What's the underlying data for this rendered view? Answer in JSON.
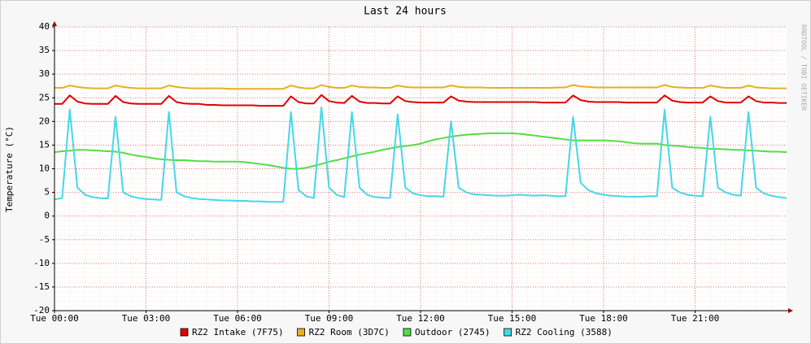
{
  "chart_data": {
    "type": "line",
    "title": "Last 24 hours",
    "y_label": "Temperature (°C)",
    "watermark": "RRDTOOL / TOBI OETIKER",
    "xlim": [
      0,
      24
    ],
    "xticks": [
      {
        "value": 0,
        "label": "Tue 00:00"
      },
      {
        "value": 3,
        "label": "Tue 03:00"
      },
      {
        "value": 6,
        "label": "Tue 06:00"
      },
      {
        "value": 9,
        "label": "Tue 09:00"
      },
      {
        "value": 12,
        "label": "Tue 12:00"
      },
      {
        "value": 15,
        "label": "Tue 15:00"
      },
      {
        "value": 18,
        "label": "Tue 18:00"
      },
      {
        "value": 21,
        "label": "Tue 21:00"
      }
    ],
    "ylim": [
      -20,
      40
    ],
    "yticks": [
      -20,
      -15,
      -10,
      -5,
      0,
      5,
      10,
      15,
      20,
      25,
      30,
      35,
      40
    ],
    "grid": true,
    "x": [
      0,
      0.25,
      0.5,
      0.75,
      1,
      1.25,
      1.5,
      1.75,
      2,
      2.25,
      2.5,
      2.75,
      3,
      3.25,
      3.5,
      3.75,
      4,
      4.25,
      4.5,
      4.75,
      5,
      5.25,
      5.5,
      5.75,
      6,
      6.25,
      6.5,
      6.75,
      7,
      7.25,
      7.5,
      7.75,
      8,
      8.25,
      8.5,
      8.75,
      9,
      9.25,
      9.5,
      9.75,
      10,
      10.25,
      10.5,
      10.75,
      11,
      11.25,
      11.5,
      11.75,
      12,
      12.25,
      12.5,
      12.75,
      13,
      13.25,
      13.5,
      13.75,
      14,
      14.25,
      14.5,
      14.75,
      15,
      15.25,
      15.5,
      15.75,
      16,
      16.25,
      16.5,
      16.75,
      17,
      17.25,
      17.5,
      17.75,
      18,
      18.25,
      18.5,
      18.75,
      19,
      19.25,
      19.5,
      19.75,
      20,
      20.25,
      20.5,
      20.75,
      21,
      21.25,
      21.5,
      21.75,
      22,
      22.25,
      22.5,
      22.75,
      23,
      23.25,
      23.5,
      23.75,
      24
    ],
    "series": [
      {
        "name": "RZ2 Intake (7F75)",
        "color": "#e00000",
        "values": [
          23.7,
          23.7,
          25.5,
          24.2,
          23.8,
          23.7,
          23.7,
          23.7,
          25.4,
          24.1,
          23.8,
          23.7,
          23.7,
          23.7,
          23.7,
          25.4,
          24.1,
          23.8,
          23.7,
          23.7,
          23.5,
          23.5,
          23.4,
          23.4,
          23.4,
          23.4,
          23.4,
          23.3,
          23.3,
          23.3,
          23.3,
          25.3,
          24.1,
          23.8,
          23.8,
          25.6,
          24.3,
          24,
          23.9,
          25.4,
          24.2,
          23.9,
          23.9,
          23.8,
          23.8,
          25.3,
          24.3,
          24.1,
          24,
          24,
          24,
          24,
          25.3,
          24.4,
          24.2,
          24.1,
          24.1,
          24.1,
          24.1,
          24.1,
          24.1,
          24.1,
          24.1,
          24.1,
          24,
          24,
          24,
          24,
          25.5,
          24.5,
          24.2,
          24.1,
          24.1,
          24.1,
          24.1,
          24,
          24,
          24,
          24,
          24,
          25.5,
          24.4,
          24.1,
          24,
          24,
          24,
          25.3,
          24.3,
          24,
          24,
          24,
          25.3,
          24.3,
          24,
          24,
          23.9,
          23.9
        ]
      },
      {
        "name": "RZ2 Room (3D7C)",
        "color": "#e6b020",
        "values": [
          27.1,
          27.1,
          27.6,
          27.3,
          27.1,
          27,
          27,
          27,
          27.6,
          27.3,
          27.1,
          27,
          27,
          27,
          27,
          27.6,
          27.3,
          27.1,
          27,
          27,
          27,
          27,
          27,
          26.9,
          26.9,
          26.9,
          26.9,
          26.9,
          26.9,
          26.9,
          26.9,
          27.6,
          27.2,
          27,
          27,
          27.7,
          27.3,
          27.1,
          27.1,
          27.6,
          27.3,
          27.2,
          27.2,
          27.1,
          27.1,
          27.6,
          27.3,
          27.2,
          27.2,
          27.2,
          27.2,
          27.2,
          27.6,
          27.3,
          27.2,
          27.2,
          27.2,
          27.1,
          27.1,
          27.1,
          27.1,
          27.1,
          27.1,
          27.1,
          27.1,
          27.1,
          27.2,
          27.2,
          27.7,
          27.4,
          27.3,
          27.2,
          27.2,
          27.2,
          27.2,
          27.2,
          27.2,
          27.2,
          27.2,
          27.2,
          27.7,
          27.3,
          27.2,
          27.1,
          27.1,
          27.1,
          27.6,
          27.3,
          27.1,
          27.1,
          27.1,
          27.6,
          27.2,
          27.1,
          27,
          27,
          27
        ]
      },
      {
        "name": "Outdoor (2745)",
        "color": "#55dd44",
        "values": [
          13.5,
          13.7,
          13.8,
          14,
          14,
          13.9,
          13.8,
          13.7,
          13.6,
          13.4,
          13,
          12.7,
          12.5,
          12.2,
          12,
          11.9,
          11.8,
          11.8,
          11.7,
          11.6,
          11.6,
          11.5,
          11.5,
          11.5,
          11.5,
          11.4,
          11.2,
          11,
          10.8,
          10.5,
          10.2,
          10,
          10,
          10.2,
          10.6,
          11,
          11.5,
          11.8,
          12.2,
          12.6,
          13,
          13.3,
          13.6,
          14,
          14.3,
          14.6,
          14.8,
          15,
          15.3,
          15.8,
          16.2,
          16.5,
          16.8,
          17,
          17.2,
          17.3,
          17.4,
          17.5,
          17.5,
          17.5,
          17.5,
          17.4,
          17.2,
          17,
          16.8,
          16.6,
          16.4,
          16.2,
          16,
          16,
          16,
          16,
          16,
          15.9,
          15.8,
          15.6,
          15.4,
          15.3,
          15.3,
          15.3,
          15,
          14.9,
          14.8,
          14.6,
          14.5,
          14.4,
          14.2,
          14.2,
          14.1,
          14,
          14,
          13.9,
          13.8,
          13.7,
          13.6,
          13.6,
          13.5
        ]
      },
      {
        "name": "RZ2 Cooling (3588)",
        "color": "#44d8e8",
        "values": [
          3.5,
          3.8,
          22.5,
          6,
          4.5,
          4,
          3.8,
          3.7,
          21,
          5,
          4.2,
          3.8,
          3.6,
          3.5,
          3.4,
          22,
          5,
          4.2,
          3.8,
          3.6,
          3.5,
          3.4,
          3.3,
          3.3,
          3.2,
          3.2,
          3.1,
          3.1,
          3,
          3,
          3,
          22,
          5.5,
          4.2,
          3.8,
          23,
          6,
          4.5,
          4,
          22,
          6,
          4.5,
          4,
          3.9,
          3.8,
          21.5,
          6,
          4.8,
          4.4,
          4.2,
          4.2,
          4.1,
          20,
          6,
          5,
          4.6,
          4.5,
          4.4,
          4.3,
          4.3,
          4.4,
          4.5,
          4.4,
          4.3,
          4.4,
          4.3,
          4.2,
          4.2,
          21,
          7,
          5.5,
          4.8,
          4.5,
          4.3,
          4.2,
          4.1,
          4.1,
          4.1,
          4.2,
          4.2,
          22.5,
          6,
          5,
          4.5,
          4.3,
          4.2,
          21,
          6,
          5,
          4.5,
          4.3,
          22,
          6,
          4.8,
          4.3,
          4,
          3.8
        ]
      }
    ]
  }
}
